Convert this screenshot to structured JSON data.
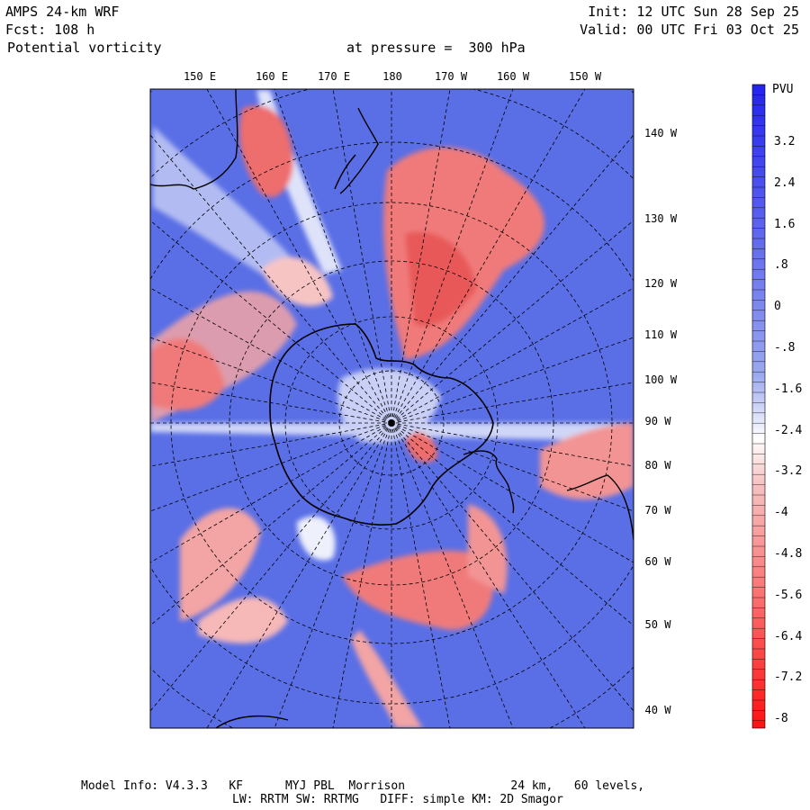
{
  "header": {
    "model": "AMPS 24-km WRF",
    "forecast": "Fcst: 108 h",
    "field": "Potential vorticity",
    "level": "at pressure =  300 hPa",
    "init": "Init: 12 UTC Sun 28 Sep 25",
    "valid": "Valid: 00 UTC Fri 03 Oct 25"
  },
  "map": {
    "top_longitude_labels": [
      "150 E",
      "160 E",
      "170 E",
      "180",
      "170 W",
      "160 W",
      "150 W"
    ],
    "right_longitude_labels": [
      "140 W",
      "130 W",
      "120 W",
      "110 W",
      "100 W",
      "90 W",
      "80 W",
      "70 W",
      "60 W",
      "50 W",
      "40 W"
    ],
    "colors": {
      "positive": "#5a6fe6",
      "negative": "#f07a7a",
      "neutral": "#eef0fb",
      "coast": "#000000",
      "grid": "#000000"
    },
    "icons": [
      "antarctica-coastline",
      "new-zealand-coastline",
      "south-america-coastline",
      "australia-coastline"
    ]
  },
  "colorbar": {
    "unit": "PVU",
    "labels": [
      "3.2",
      "2.4",
      "1.6",
      ".8",
      "0",
      "-.8",
      "-1.6",
      "-2.4",
      "-3.2",
      "-4",
      "-4.8",
      "-5.6",
      "-6.4",
      "-7.2",
      "-8"
    ],
    "top_color": "#2222ee",
    "bottom_color": "#ff1111"
  },
  "footer": {
    "line1": "Model Info: V4.3.3   KF      MYJ PBL  Morrison               24 km,   60 levels,",
    "line2": "LW: RRTM SW: RRTMG   DIFF: simple KM: 2D Smagor"
  }
}
